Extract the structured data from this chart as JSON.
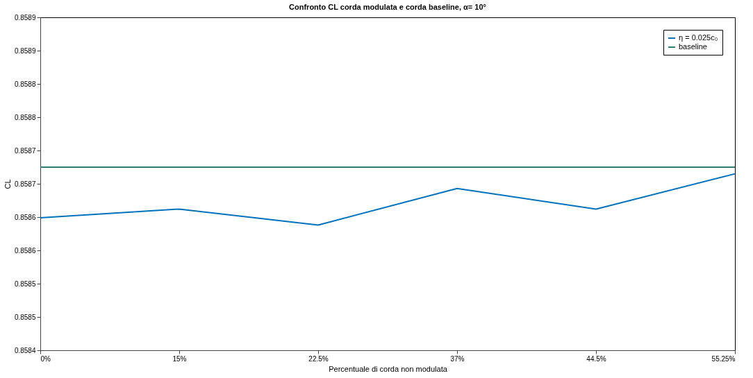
{
  "chart_data": {
    "type": "line",
    "title": "Confronto CL corda modulata e corda baseline, α= 10°",
    "xlabel": "Percentuale di corda non modulata",
    "ylabel": "CL",
    "categories": [
      "0%",
      "15%",
      "22.5%",
      "37%",
      "44.5%",
      "55.25%"
    ],
    "series": [
      {
        "name": "η = 0.025c₀",
        "color": "#0072bd",
        "values": [
          0.858599,
          0.858612,
          0.858588,
          0.858643,
          0.858612,
          0.858665
        ]
      },
      {
        "name": "baseline",
        "color": "#2f7f6f",
        "values": [
          0.858675,
          0.858675,
          0.858675,
          0.858675,
          0.858675,
          0.858675
        ]
      }
    ],
    "ylim": [
      0.8584,
      0.8589
    ],
    "yticks": [
      0.8584,
      {
        "value": 0.85845,
        "label": "0.8585"
      },
      0.8585,
      {
        "value": 0.85855,
        "label": "0.8586"
      },
      0.8586,
      {
        "value": 0.85865,
        "label": "0.8587"
      },
      0.8587,
      {
        "value": 0.85875,
        "label": "0.8588"
      },
      0.8588,
      {
        "value": 0.85885,
        "label": "0.8589"
      },
      0.8589
    ],
    "grid": false,
    "legend": "top right",
    "marker": "none",
    "line_style": "solid"
  }
}
